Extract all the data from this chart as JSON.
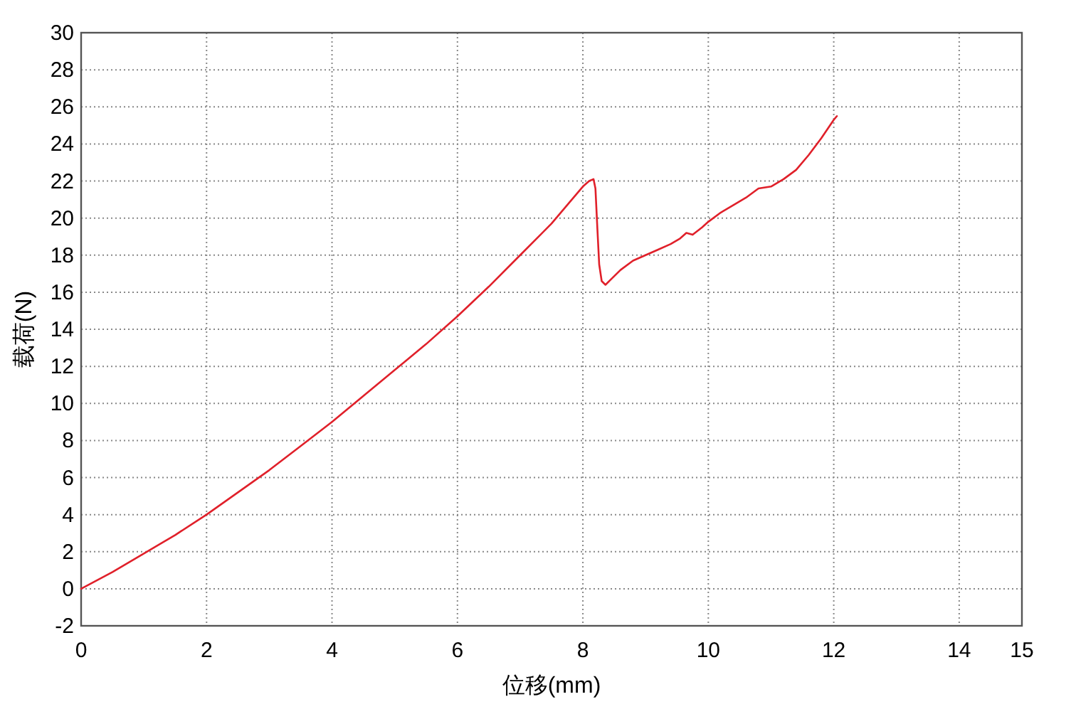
{
  "chart_data": {
    "type": "line",
    "xlabel": "位移(mm)",
    "ylabel": "载荷(N)",
    "xlim": [
      0,
      15
    ],
    "ylim": [
      -2,
      30
    ],
    "xticks": [
      0,
      2,
      4,
      6,
      8,
      10,
      12,
      14,
      15
    ],
    "yticks": [
      -2,
      0,
      2,
      4,
      6,
      8,
      10,
      12,
      14,
      16,
      18,
      20,
      22,
      24,
      26,
      28,
      30
    ],
    "grid": true,
    "marker": "none",
    "line_style": "solid",
    "series": [
      {
        "color": "#e0202a",
        "x": [
          0,
          0.5,
          1,
          1.5,
          2,
          2.5,
          3,
          3.5,
          4,
          4.5,
          5,
          5.5,
          6,
          6.5,
          7,
          7.5,
          7.8,
          8.0,
          8.1,
          8.17,
          8.2,
          8.23,
          8.26,
          8.3,
          8.36,
          8.45,
          8.6,
          8.8,
          9.0,
          9.2,
          9.4,
          9.55,
          9.65,
          9.75,
          9.9,
          10.0,
          10.2,
          10.4,
          10.6,
          10.8,
          11.0,
          11.2,
          11.4,
          11.6,
          11.8,
          12.0,
          12.05
        ],
        "values": [
          0,
          0.9,
          1.9,
          2.9,
          4,
          5.2,
          6.4,
          7.7,
          9,
          10.4,
          11.8,
          13.2,
          14.7,
          16.3,
          18,
          19.7,
          20.9,
          21.7,
          22,
          22.1,
          21.6,
          19.5,
          17.5,
          16.6,
          16.4,
          16.7,
          17.2,
          17.7,
          18.0,
          18.3,
          18.6,
          18.9,
          19.2,
          19.1,
          19.5,
          19.8,
          20.3,
          20.7,
          21.1,
          21.6,
          21.7,
          22.1,
          22.6,
          23.4,
          24.3,
          25.3,
          25.5
        ]
      }
    ]
  }
}
